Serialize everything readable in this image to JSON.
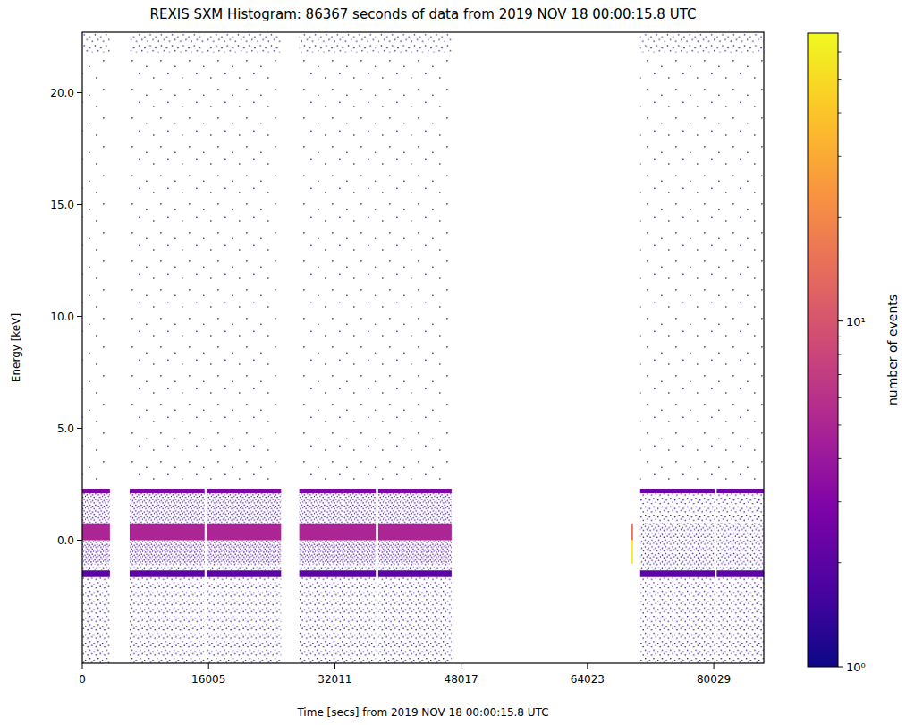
{
  "chart_data": {
    "type": "heatmap",
    "title": "REXIS SXM Histogram: 86367 seconds of data from 2019 NOV 18 00:00:15.8 UTC",
    "x_label": "Time [secs] from 2019 NOV 18 00:00:15.8 UTC",
    "y_label": "Energy [keV]",
    "xlim": [
      0,
      86367
    ],
    "ylim": [
      -5.5,
      22.7
    ],
    "xticks": [
      0,
      16005,
      32011,
      48017,
      64023,
      80029
    ],
    "yticks": [
      {
        "value": 0,
        "label": "0.0"
      },
      {
        "value": 5,
        "label": "5.0"
      },
      {
        "value": 10,
        "label": "10.0"
      },
      {
        "value": 15,
        "label": "15.0"
      },
      {
        "value": 20,
        "label": "20.0"
      }
    ],
    "x_edges": [
      0,
      3500,
      6000,
      15500,
      15800,
      25200,
      27500,
      37200,
      37500,
      46800,
      69500,
      69800,
      70700,
      80150,
      80400,
      86367
    ],
    "y_edges": [
      -5.5,
      -1.65,
      -1.35,
      -1.05,
      0,
      0.75,
      2.1,
      2.3,
      21.8,
      22.7
    ],
    "cells": [
      [
        1.3,
        null,
        1.3,
        null,
        1.3,
        null,
        1.3,
        null,
        1.3,
        null,
        null,
        null,
        1.3,
        null,
        1.3
      ],
      [
        2,
        null,
        2,
        null,
        2,
        null,
        2,
        null,
        2,
        null,
        null,
        null,
        2,
        null,
        2
      ],
      [
        1.4,
        null,
        1.4,
        null,
        1.4,
        null,
        1.4,
        null,
        1.4,
        null,
        null,
        null,
        1.4,
        null,
        1.4
      ],
      [
        1.6,
        null,
        1.6,
        null,
        1.6,
        null,
        1.6,
        null,
        1.6,
        null,
        60,
        null,
        1.4,
        null,
        1.4
      ],
      [
        5,
        null,
        5,
        null,
        5,
        null,
        5,
        null,
        5,
        null,
        15,
        null,
        1.4,
        null,
        1.4
      ],
      [
        1.5,
        null,
        1.5,
        null,
        1.5,
        null,
        1.5,
        null,
        1.5,
        null,
        null,
        null,
        1.3,
        null,
        1.3
      ],
      [
        3,
        null,
        3,
        null,
        3,
        null,
        3,
        null,
        3,
        null,
        null,
        null,
        2.5,
        null,
        2.5
      ],
      [
        1,
        null,
        1,
        null,
        1,
        null,
        1,
        null,
        1,
        null,
        null,
        null,
        1,
        null,
        1
      ],
      [
        1.2,
        null,
        1.2,
        null,
        1.2,
        null,
        1.2,
        null,
        1.2,
        null,
        null,
        null,
        1.2,
        null,
        1.2
      ]
    ],
    "colorbar": {
      "label": "number of events",
      "range": [
        1,
        68
      ],
      "log": true,
      "ticks": [
        {
          "value": 1,
          "label": "10⁰"
        },
        {
          "value": 10,
          "label": "10¹"
        }
      ],
      "minor_ticks": [
        2,
        3,
        4,
        5,
        6,
        7,
        8,
        9,
        20,
        30,
        40,
        50,
        60
      ]
    }
  }
}
